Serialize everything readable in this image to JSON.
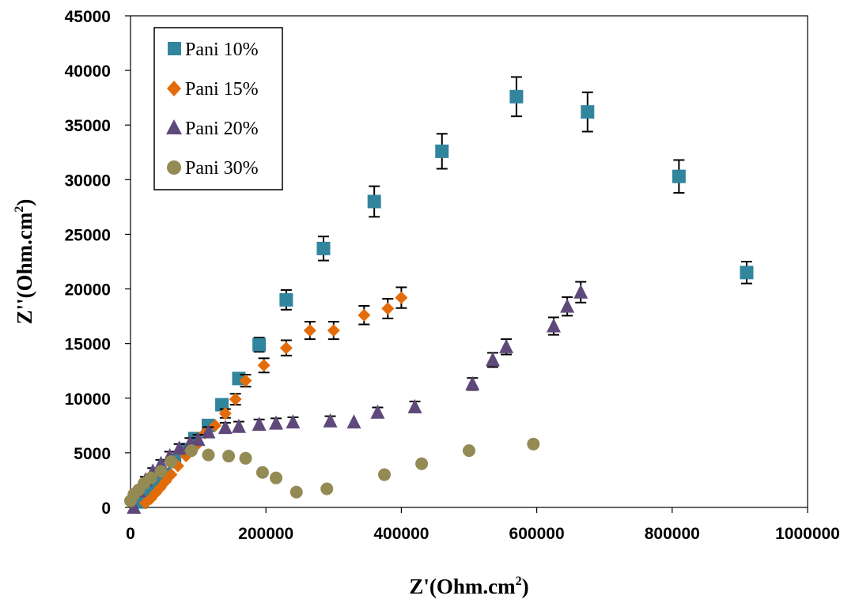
{
  "chart_data": {
    "type": "scatter",
    "xlabel_main": "Z'(Ohm.cm",
    "xlabel_sup": "2",
    "xlabel_end": ")",
    "ylabel_main": "Z''(Ohm.cm",
    "ylabel_sup": "2",
    "ylabel_end": ")",
    "xlim": [
      0,
      1000000
    ],
    "ylim": [
      0,
      45000
    ],
    "xticks": [
      0,
      200000,
      400000,
      600000,
      800000,
      1000000
    ],
    "yticks": [
      0,
      5000,
      10000,
      15000,
      20000,
      25000,
      30000,
      35000,
      40000,
      45000
    ],
    "grid": false,
    "legend_position": "top-left",
    "series": [
      {
        "name": "Pani 10%",
        "color": "#31859c",
        "marker": "square",
        "points": [
          {
            "x": 15000,
            "y": 500
          },
          {
            "x": 22000,
            "y": 1000
          },
          {
            "x": 30000,
            "y": 1700
          },
          {
            "x": 40000,
            "y": 2300
          },
          {
            "x": 50000,
            "y": 3000
          },
          {
            "x": 65000,
            "y": 4200
          },
          {
            "x": 80000,
            "y": 5300
          },
          {
            "x": 95000,
            "y": 6300
          },
          {
            "x": 115000,
            "y": 7500
          },
          {
            "x": 135000,
            "y": 9400
          },
          {
            "x": 160000,
            "y": 11800
          },
          {
            "x": 190000,
            "y": 14900
          },
          {
            "x": 230000,
            "y": 19000
          },
          {
            "x": 285000,
            "y": 23700
          },
          {
            "x": 360000,
            "y": 28000
          },
          {
            "x": 460000,
            "y": 32600
          },
          {
            "x": 570000,
            "y": 37600
          },
          {
            "x": 675000,
            "y": 36200
          },
          {
            "x": 810000,
            "y": 30300
          },
          {
            "x": 910000,
            "y": 21500
          }
        ],
        "errors": [
          0,
          0,
          0,
          0,
          0,
          0,
          0,
          0,
          0,
          500,
          500,
          650,
          900,
          1100,
          1400,
          1600,
          1800,
          1800,
          1500,
          1000
        ]
      },
      {
        "name": "Pani 15%",
        "color": "#e36c0a",
        "marker": "diamond",
        "points": [
          {
            "x": 22000,
            "y": 400
          },
          {
            "x": 30000,
            "y": 800
          },
          {
            "x": 37000,
            "y": 1300
          },
          {
            "x": 44000,
            "y": 1800
          },
          {
            "x": 52000,
            "y": 2400
          },
          {
            "x": 60000,
            "y": 3000
          },
          {
            "x": 70000,
            "y": 3800
          },
          {
            "x": 82000,
            "y": 4700
          },
          {
            "x": 96000,
            "y": 5600
          },
          {
            "x": 110000,
            "y": 6800
          },
          {
            "x": 125000,
            "y": 7500
          },
          {
            "x": 140000,
            "y": 8600
          },
          {
            "x": 155000,
            "y": 9900
          },
          {
            "x": 170000,
            "y": 11600
          },
          {
            "x": 197000,
            "y": 13000
          },
          {
            "x": 230000,
            "y": 14600
          },
          {
            "x": 265000,
            "y": 16200
          },
          {
            "x": 300000,
            "y": 16200
          },
          {
            "x": 345000,
            "y": 17600
          },
          {
            "x": 380000,
            "y": 18200
          },
          {
            "x": 400000,
            "y": 19200
          }
        ],
        "errors": [
          0,
          0,
          0,
          0,
          0,
          0,
          0,
          0,
          0,
          0,
          0,
          400,
          500,
          550,
          650,
          700,
          800,
          800,
          850,
          900,
          950
        ]
      },
      {
        "name": "Pani 20%",
        "color": "#5f497a",
        "marker": "triangle",
        "points": [
          {
            "x": 5000,
            "y": 0
          },
          {
            "x": 12000,
            "y": 1500
          },
          {
            "x": 22000,
            "y": 2500
          },
          {
            "x": 33000,
            "y": 3300
          },
          {
            "x": 45000,
            "y": 4000
          },
          {
            "x": 58000,
            "y": 4700
          },
          {
            "x": 72000,
            "y": 5400
          },
          {
            "x": 88000,
            "y": 5900
          },
          {
            "x": 100000,
            "y": 6200
          },
          {
            "x": 115000,
            "y": 6900
          },
          {
            "x": 140000,
            "y": 7300
          },
          {
            "x": 160000,
            "y": 7400
          },
          {
            "x": 190000,
            "y": 7600
          },
          {
            "x": 215000,
            "y": 7700
          },
          {
            "x": 240000,
            "y": 7800
          },
          {
            "x": 295000,
            "y": 7900
          },
          {
            "x": 330000,
            "y": 7800
          },
          {
            "x": 365000,
            "y": 8700
          },
          {
            "x": 420000,
            "y": 9200
          },
          {
            "x": 505000,
            "y": 11300
          },
          {
            "x": 535000,
            "y": 13500
          },
          {
            "x": 555000,
            "y": 14700
          },
          {
            "x": 625000,
            "y": 16600
          },
          {
            "x": 645000,
            "y": 18400
          },
          {
            "x": 665000,
            "y": 19700
          }
        ],
        "errors": [
          0,
          0,
          300,
          300,
          350,
          400,
          400,
          450,
          450,
          450,
          450,
          450,
          450,
          450,
          450,
          450,
          0,
          450,
          500,
          550,
          650,
          700,
          800,
          850,
          950
        ]
      },
      {
        "name": "Pani 30%",
        "color": "#948a54",
        "marker": "circle",
        "points": [
          {
            "x": 0,
            "y": 600
          },
          {
            "x": 5000,
            "y": 1200
          },
          {
            "x": 12000,
            "y": 1600
          },
          {
            "x": 20000,
            "y": 2200
          },
          {
            "x": 30000,
            "y": 2700
          },
          {
            "x": 45000,
            "y": 3300
          },
          {
            "x": 60000,
            "y": 4200
          },
          {
            "x": 90000,
            "y": 5200
          },
          {
            "x": 115000,
            "y": 4800
          },
          {
            "x": 145000,
            "y": 4700
          },
          {
            "x": 170000,
            "y": 4500
          },
          {
            "x": 195000,
            "y": 3200
          },
          {
            "x": 215000,
            "y": 2700
          },
          {
            "x": 245000,
            "y": 1400
          },
          {
            "x": 290000,
            "y": 1700
          },
          {
            "x": 375000,
            "y": 3000
          },
          {
            "x": 430000,
            "y": 4000
          },
          {
            "x": 500000,
            "y": 5200
          },
          {
            "x": 595000,
            "y": 5800
          }
        ],
        "errors": []
      }
    ]
  }
}
